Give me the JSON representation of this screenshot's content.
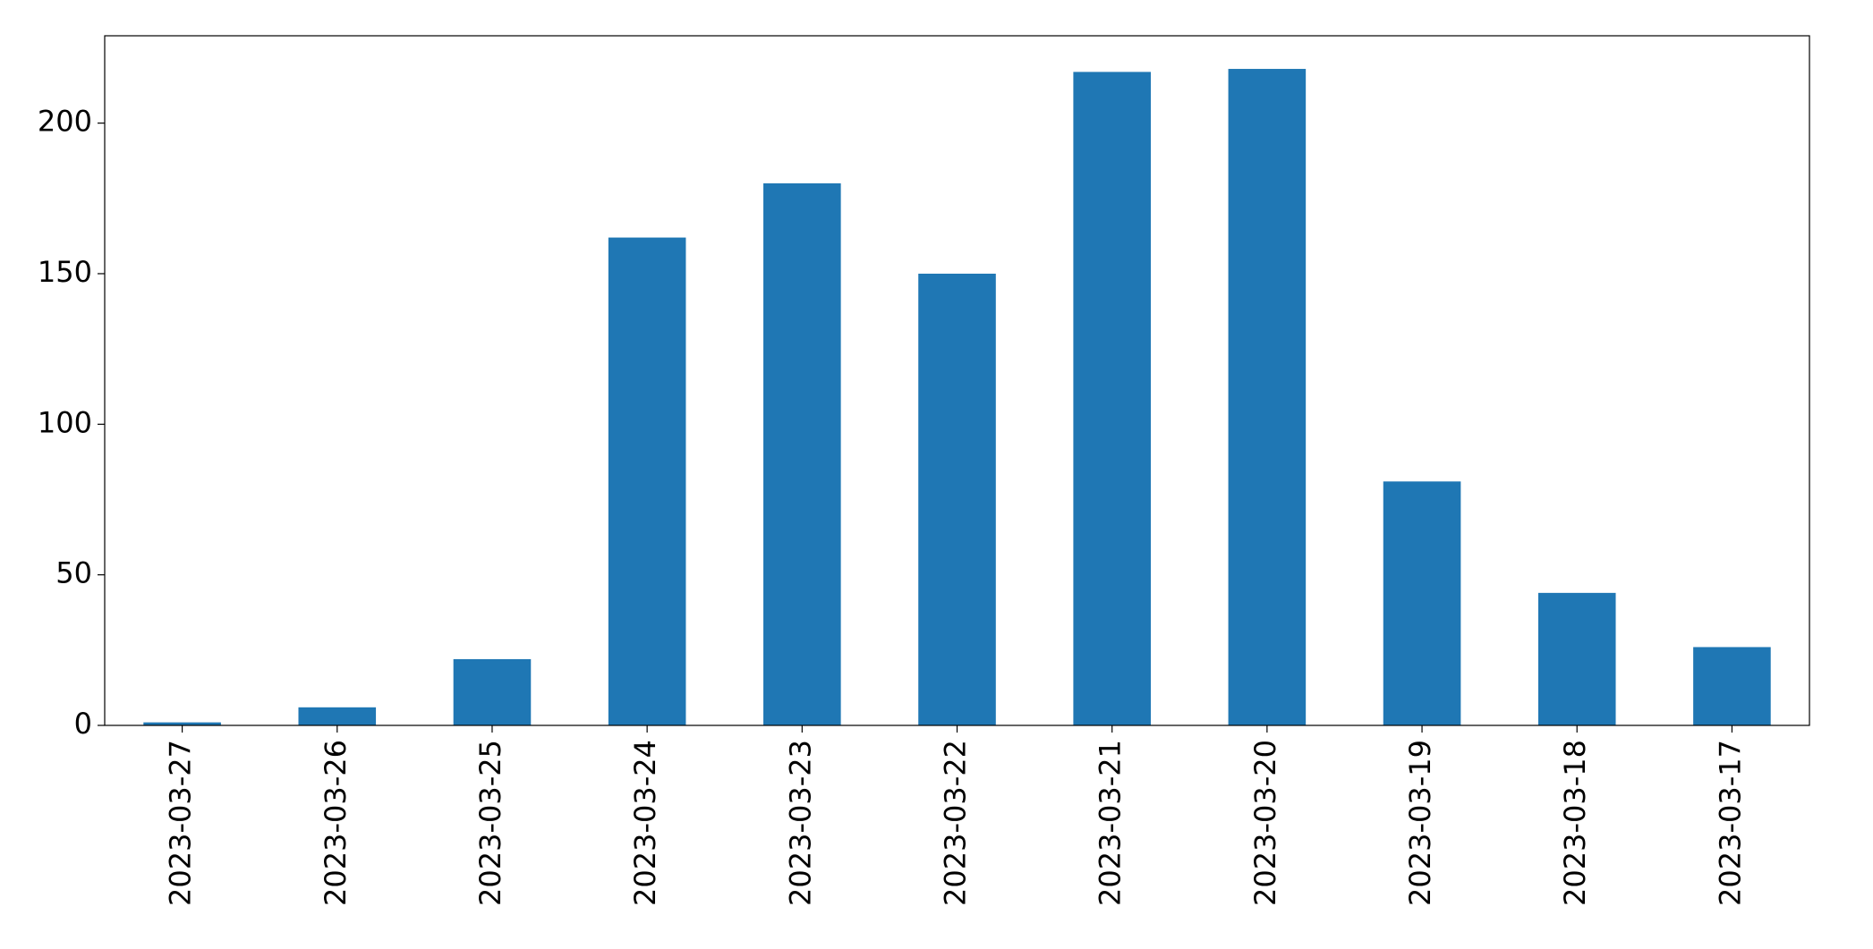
{
  "chart_data": {
    "type": "bar",
    "categories": [
      "2023-03-27",
      "2023-03-26",
      "2023-03-25",
      "2023-03-24",
      "2023-03-23",
      "2023-03-22",
      "2023-03-21",
      "2023-03-20",
      "2023-03-19",
      "2023-03-18",
      "2023-03-17"
    ],
    "values": [
      1,
      6,
      22,
      162,
      180,
      150,
      217,
      218,
      81,
      44,
      26
    ],
    "color": "#1f77b4",
    "ylim": [
      0,
      229
    ],
    "yticks": [
      0,
      50,
      100,
      150,
      200
    ],
    "grid": false
  }
}
